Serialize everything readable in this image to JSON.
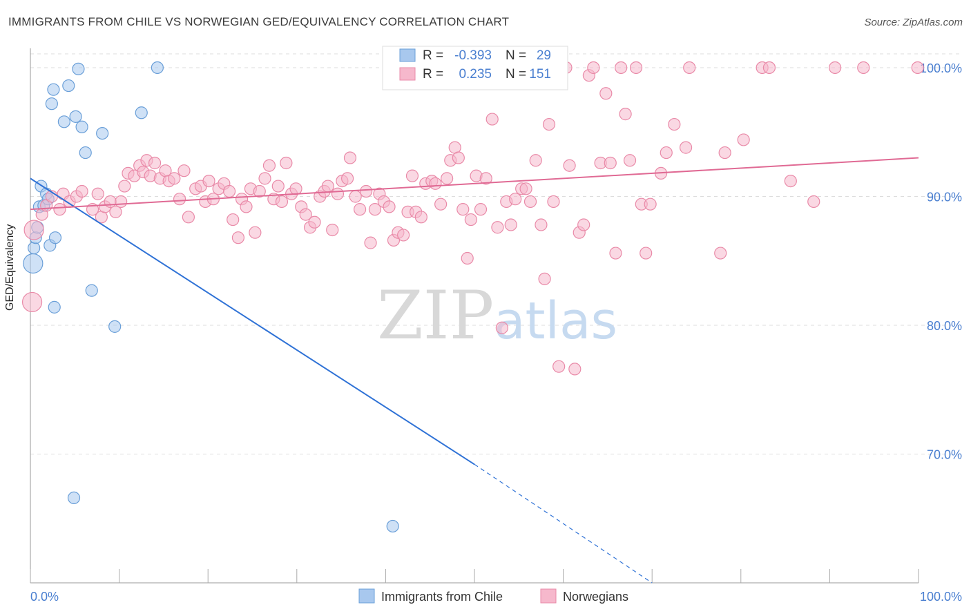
{
  "title": "IMMIGRANTS FROM CHILE VS NORWEGIAN GED/EQUIVALENCY CORRELATION CHART",
  "source": "Source: ZipAtlas.com",
  "watermark": {
    "zip": "ZIP",
    "atlas": "atlas"
  },
  "colors": {
    "blue_fill": "#a8c8ee",
    "blue_stroke": "#6a9fd8",
    "blue_line": "#2f72d6",
    "pink_fill": "#f6b8cc",
    "pink_stroke": "#e98aa8",
    "pink_line": "#e06a94",
    "tick_text": "#4a7fd0",
    "grid": "#dddddd"
  },
  "stats": {
    "blue": {
      "r_label": "R =",
      "r_value": "-0.393",
      "n_label": "N =",
      "n_value": "29"
    },
    "pink": {
      "r_label": "R =",
      "r_value": "0.235",
      "n_label": "N =",
      "n_value": "151"
    }
  },
  "chart_data": {
    "type": "scatter",
    "xlabel": "",
    "ylabel": "GED/Equivalency",
    "xlim": [
      0,
      100
    ],
    "ylim": [
      60,
      101.5
    ],
    "x_tick_labels": [
      "0.0%",
      "100.0%"
    ],
    "y_ticks": [
      70,
      80,
      90,
      100
    ],
    "y_tick_labels": [
      "70.0%",
      "80.0%",
      "90.0%",
      "100.0%"
    ],
    "grid": true,
    "legend_position": "bottom",
    "series": [
      {
        "name": "Immigrants from Chile",
        "color": "blue",
        "points": [
          [
            0.3,
            84.8,
            "L"
          ],
          [
            0.4,
            86.0
          ],
          [
            0.6,
            86.8
          ],
          [
            0.8,
            87.6
          ],
          [
            1.0,
            89.2
          ],
          [
            1.2,
            90.8
          ],
          [
            1.5,
            89.3
          ],
          [
            1.8,
            90.2
          ],
          [
            2.0,
            89.8
          ],
          [
            2.2,
            86.2
          ],
          [
            2.4,
            97.2
          ],
          [
            2.6,
            98.3
          ],
          [
            2.8,
            86.8
          ],
          [
            2.7,
            81.4
          ],
          [
            3.8,
            95.8
          ],
          [
            4.3,
            98.6
          ],
          [
            5.1,
            96.2
          ],
          [
            5.4,
            99.9
          ],
          [
            5.8,
            95.4
          ],
          [
            6.2,
            93.4
          ],
          [
            6.9,
            82.7
          ],
          [
            8.1,
            94.9
          ],
          [
            9.5,
            79.9
          ],
          [
            12.5,
            96.5
          ],
          [
            14.3,
            100.0
          ],
          [
            4.9,
            66.6
          ],
          [
            40.8,
            64.4
          ]
        ],
        "trend": {
          "x0": 0,
          "y0": 91.4,
          "x1": 50,
          "y1": 69.2,
          "dash_to_x": 70,
          "dash_to_y": 60.0
        }
      },
      {
        "name": "Norwegians",
        "color": "pink",
        "points": [
          [
            0.2,
            81.8,
            "L"
          ],
          [
            0.4,
            87.4,
            "L"
          ],
          [
            1.3,
            88.6
          ],
          [
            1.8,
            89.3
          ],
          [
            2.4,
            90.0
          ],
          [
            3.3,
            89.0
          ],
          [
            3.7,
            90.2
          ],
          [
            4.4,
            89.6
          ],
          [
            5.2,
            90.0
          ],
          [
            5.8,
            90.4
          ],
          [
            7.0,
            89.0
          ],
          [
            7.6,
            90.2
          ],
          [
            8.0,
            88.4
          ],
          [
            8.4,
            89.2
          ],
          [
            9.0,
            89.6
          ],
          [
            9.6,
            88.8
          ],
          [
            10.2,
            89.6
          ],
          [
            10.6,
            90.8
          ],
          [
            11.0,
            91.8
          ],
          [
            11.7,
            91.6
          ],
          [
            12.3,
            92.4
          ],
          [
            12.7,
            91.9
          ],
          [
            13.1,
            92.8
          ],
          [
            13.5,
            91.6
          ],
          [
            14.0,
            92.6
          ],
          [
            14.6,
            91.4
          ],
          [
            15.2,
            92.0
          ],
          [
            15.6,
            91.2
          ],
          [
            16.2,
            91.4
          ],
          [
            16.8,
            89.8
          ],
          [
            17.3,
            92.0
          ],
          [
            17.8,
            88.4
          ],
          [
            18.6,
            90.6
          ],
          [
            19.2,
            90.8
          ],
          [
            19.7,
            89.6
          ],
          [
            20.1,
            91.2
          ],
          [
            20.6,
            89.8
          ],
          [
            21.2,
            90.6
          ],
          [
            21.8,
            91.0
          ],
          [
            22.4,
            90.4
          ],
          [
            22.8,
            88.2
          ],
          [
            23.4,
            86.8
          ],
          [
            23.8,
            89.8
          ],
          [
            24.3,
            89.2
          ],
          [
            24.8,
            90.6
          ],
          [
            25.3,
            87.2
          ],
          [
            25.8,
            90.4
          ],
          [
            26.4,
            91.4
          ],
          [
            26.9,
            92.4
          ],
          [
            27.4,
            89.8
          ],
          [
            27.9,
            90.8
          ],
          [
            28.3,
            89.6
          ],
          [
            28.8,
            92.6
          ],
          [
            29.4,
            90.2
          ],
          [
            29.9,
            90.6
          ],
          [
            30.5,
            89.2
          ],
          [
            31.0,
            88.6
          ],
          [
            31.5,
            87.6
          ],
          [
            32.0,
            88.0
          ],
          [
            32.6,
            90.0
          ],
          [
            33.1,
            90.4
          ],
          [
            33.5,
            90.8
          ],
          [
            34.0,
            87.4
          ],
          [
            34.6,
            90.2
          ],
          [
            35.1,
            91.2
          ],
          [
            35.7,
            91.4
          ],
          [
            36.0,
            93.0
          ],
          [
            36.6,
            90.0
          ],
          [
            37.1,
            89.0
          ],
          [
            37.8,
            90.4
          ],
          [
            38.3,
            86.4
          ],
          [
            38.8,
            89.0
          ],
          [
            39.3,
            90.2
          ],
          [
            39.8,
            89.6
          ],
          [
            40.4,
            89.2
          ],
          [
            40.9,
            86.6
          ],
          [
            41.4,
            87.2
          ],
          [
            42.0,
            87.0
          ],
          [
            42.5,
            88.8
          ],
          [
            43.0,
            91.6
          ],
          [
            43.4,
            88.8
          ],
          [
            44.0,
            88.4
          ],
          [
            44.5,
            91.0
          ],
          [
            45.2,
            91.2
          ],
          [
            45.6,
            91.0
          ],
          [
            46.2,
            89.4
          ],
          [
            46.9,
            91.4
          ],
          [
            47.3,
            92.8
          ],
          [
            47.8,
            93.8
          ],
          [
            48.2,
            93.0
          ],
          [
            48.7,
            89.0
          ],
          [
            49.2,
            85.2
          ],
          [
            49.6,
            88.2
          ],
          [
            50.2,
            91.6
          ],
          [
            50.7,
            89.0
          ],
          [
            51.3,
            91.4
          ],
          [
            52.0,
            96.0
          ],
          [
            52.6,
            87.6
          ],
          [
            53.1,
            79.8
          ],
          [
            53.6,
            89.6
          ],
          [
            54.1,
            87.8
          ],
          [
            54.6,
            89.8
          ],
          [
            55.3,
            90.6
          ],
          [
            55.8,
            90.6
          ],
          [
            56.3,
            89.6
          ],
          [
            56.9,
            92.8
          ],
          [
            57.5,
            87.8
          ],
          [
            57.9,
            83.6
          ],
          [
            58.4,
            95.6
          ],
          [
            58.9,
            89.6
          ],
          [
            59.5,
            76.8
          ],
          [
            60.3,
            100.0
          ],
          [
            60.7,
            92.4
          ],
          [
            61.3,
            76.6
          ],
          [
            61.8,
            87.2
          ],
          [
            62.3,
            87.8
          ],
          [
            62.9,
            99.4
          ],
          [
            63.4,
            100.0
          ],
          [
            64.2,
            92.6
          ],
          [
            64.8,
            98.0
          ],
          [
            65.3,
            92.6
          ],
          [
            65.9,
            85.6
          ],
          [
            66.5,
            100.0
          ],
          [
            67.0,
            96.4
          ],
          [
            67.5,
            92.8
          ],
          [
            68.2,
            100.0
          ],
          [
            68.8,
            89.4
          ],
          [
            69.3,
            85.6
          ],
          [
            69.8,
            89.4
          ],
          [
            71.0,
            91.8
          ],
          [
            71.6,
            93.4
          ],
          [
            72.5,
            95.6
          ],
          [
            73.8,
            93.8
          ],
          [
            74.2,
            100.0
          ],
          [
            77.7,
            85.6
          ],
          [
            78.2,
            93.4
          ],
          [
            80.3,
            94.4
          ],
          [
            82.4,
            100.0
          ],
          [
            83.2,
            100.0
          ],
          [
            85.6,
            91.2
          ],
          [
            88.2,
            89.6
          ],
          [
            90.6,
            100.0
          ],
          [
            93.8,
            100.0
          ],
          [
            99.9,
            100.0
          ]
        ],
        "trend": {
          "x0": 0,
          "y0": 89.0,
          "x1": 100,
          "y1": 93.0
        }
      }
    ]
  }
}
